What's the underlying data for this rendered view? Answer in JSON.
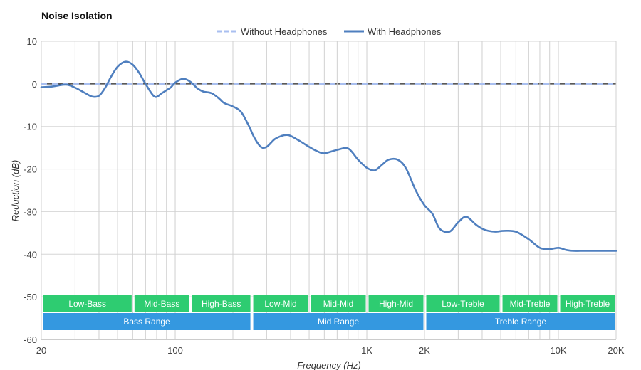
{
  "chart_data": {
    "type": "line",
    "title": "Noise Isolation",
    "xlabel": "Frequency (Hz)",
    "ylabel": "Reduction (dB)",
    "xscale": "log",
    "xlim": [
      20,
      20000
    ],
    "ylim": [
      -60,
      10
    ],
    "grid": true,
    "legend": "top-center",
    "x_ticks": [
      {
        "value": 20,
        "label": "20"
      },
      {
        "value": 100,
        "label": "100"
      },
      {
        "value": 1000,
        "label": "1K"
      },
      {
        "value": 2000,
        "label": "2K"
      },
      {
        "value": 10000,
        "label": "10K"
      },
      {
        "value": 20000,
        "label": "20K"
      }
    ],
    "y_ticks": [
      10,
      0,
      -10,
      -20,
      -30,
      -40,
      -50,
      -60
    ],
    "series": [
      {
        "name": "Without Headphones",
        "style": "dashed",
        "color": "#a9bff0",
        "x": [
          20,
          20000
        ],
        "y": [
          0,
          0
        ]
      },
      {
        "name": "With Headphones",
        "style": "solid",
        "color": "#4f7fbf",
        "x": [
          20,
          23,
          26,
          28,
          31,
          34,
          37,
          40,
          43,
          46,
          50,
          55,
          60,
          65,
          70,
          78,
          85,
          90,
          95,
          100,
          110,
          120,
          130,
          140,
          155,
          170,
          180,
          200,
          220,
          240,
          260,
          280,
          300,
          330,
          360,
          380,
          400,
          450,
          500,
          550,
          600,
          700,
          800,
          900,
          1000,
          1100,
          1200,
          1300,
          1450,
          1600,
          1800,
          2000,
          2200,
          2400,
          2700,
          3000,
          3300,
          3700,
          4000,
          4300,
          4700,
          5200,
          6000,
          7000,
          8000,
          9000,
          10000,
          11000,
          12000,
          13000,
          14000,
          16000,
          18000,
          20000
        ],
        "y": [
          -0.8,
          -0.6,
          -0.2,
          -0.3,
          -1.2,
          -2.2,
          -3.0,
          -2.8,
          -1.0,
          1.5,
          4.0,
          5.2,
          4.5,
          2.5,
          0.0,
          -3.0,
          -2.2,
          -1.5,
          -0.8,
          0.3,
          1.2,
          0.5,
          -1.0,
          -1.8,
          -2.2,
          -3.5,
          -4.5,
          -5.3,
          -6.5,
          -9.5,
          -12.8,
          -14.8,
          -14.8,
          -13.0,
          -12.2,
          -12.0,
          -12.2,
          -13.5,
          -14.8,
          -15.8,
          -16.3,
          -15.5,
          -15.2,
          -17.8,
          -19.7,
          -20.3,
          -19.0,
          -17.8,
          -17.8,
          -19.8,
          -25.0,
          -28.5,
          -30.5,
          -34.0,
          -34.7,
          -32.5,
          -31.2,
          -33.0,
          -34.0,
          -34.5,
          -34.7,
          -34.5,
          -34.7,
          -36.5,
          -38.5,
          -38.8,
          -38.5,
          -39.0,
          -39.2,
          -39.2,
          -39.2,
          -39.2,
          -39.2,
          -39.2
        ]
      }
    ],
    "bands": {
      "row1": [
        {
          "label": "Low-Bass",
          "from": 20,
          "to": 60
        },
        {
          "label": "Mid-Bass",
          "from": 60,
          "to": 120
        },
        {
          "label": "High-Bass",
          "from": 120,
          "to": 250
        },
        {
          "label": "Low-Mid",
          "from": 250,
          "to": 500
        },
        {
          "label": "Mid-Mid",
          "from": 500,
          "to": 1000
        },
        {
          "label": "High-Mid",
          "from": 1000,
          "to": 2000
        },
        {
          "label": "Low-Treble",
          "from": 2000,
          "to": 5000
        },
        {
          "label": "Mid-Treble",
          "from": 5000,
          "to": 10000
        },
        {
          "label": "High-Treble",
          "from": 10000,
          "to": 20000
        }
      ],
      "row2": [
        {
          "label": "Bass Range",
          "from": 20,
          "to": 250
        },
        {
          "label": "Mid Range",
          "from": 250,
          "to": 2000
        },
        {
          "label": "Treble Range",
          "from": 2000,
          "to": 20000
        }
      ],
      "row1_color": "#2ecc71",
      "row2_color": "#3498e0"
    }
  }
}
